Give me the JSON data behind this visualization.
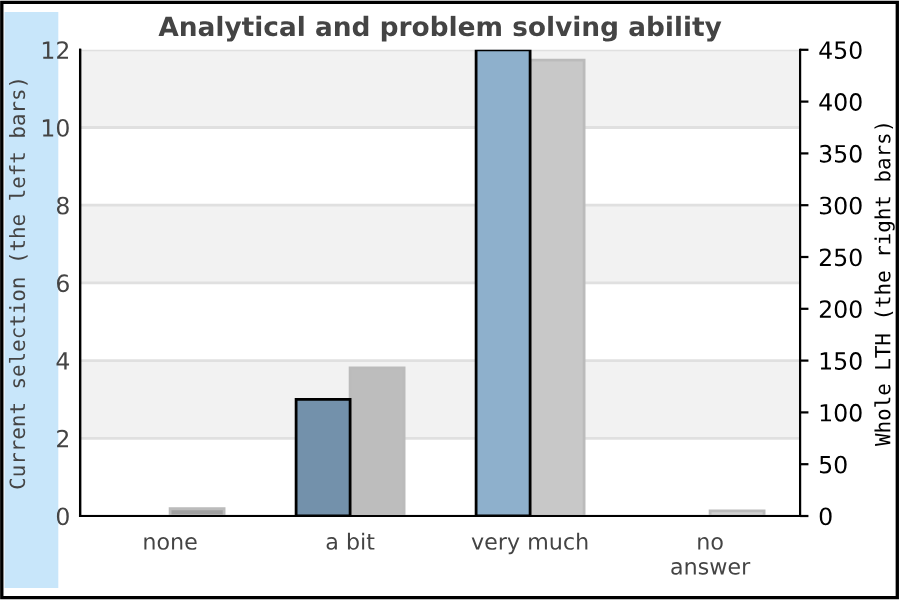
{
  "chart_data": {
    "type": "bar",
    "title": "Analytical and problem solving ability",
    "ylabel": "Current selection (the left bars)",
    "y2label": "Whole LTH (the right bars)",
    "categories": [
      "none",
      "a bit",
      "very much",
      "no\nanswer"
    ],
    "series": [
      {
        "colors": [
          "#7391ab",
          "#7391ab",
          "#8eb0cc",
          "#8eb0cc"
        ],
        "values": [
          0,
          3,
          12,
          0
        ]
      },
      {
        "axis": "y2",
        "colors": [
          "#a0a0a0",
          "#bdbdbd",
          "#c8c8c8",
          "#d0d0d0"
        ],
        "values": [
          7,
          143,
          440,
          5
        ]
      }
    ],
    "ylim": [
      0,
      12
    ],
    "yticks": [
      0,
      2,
      4,
      6,
      8,
      10,
      12
    ],
    "y2lim": [
      0,
      450
    ],
    "y2ticks": [
      0,
      50,
      100,
      150,
      200,
      250,
      300,
      350,
      400,
      450
    ],
    "bands": [
      {
        "axis": "y",
        "from": 2,
        "to": 4,
        "color": "#f2f2f2"
      },
      {
        "axis": "y",
        "from": 6,
        "to": 8,
        "color": "#f2f2f2"
      },
      {
        "axis": "y",
        "from": 10,
        "to": 12,
        "color": "#f2f2f2"
      }
    ],
    "grid": "y",
    "legend": false
  }
}
